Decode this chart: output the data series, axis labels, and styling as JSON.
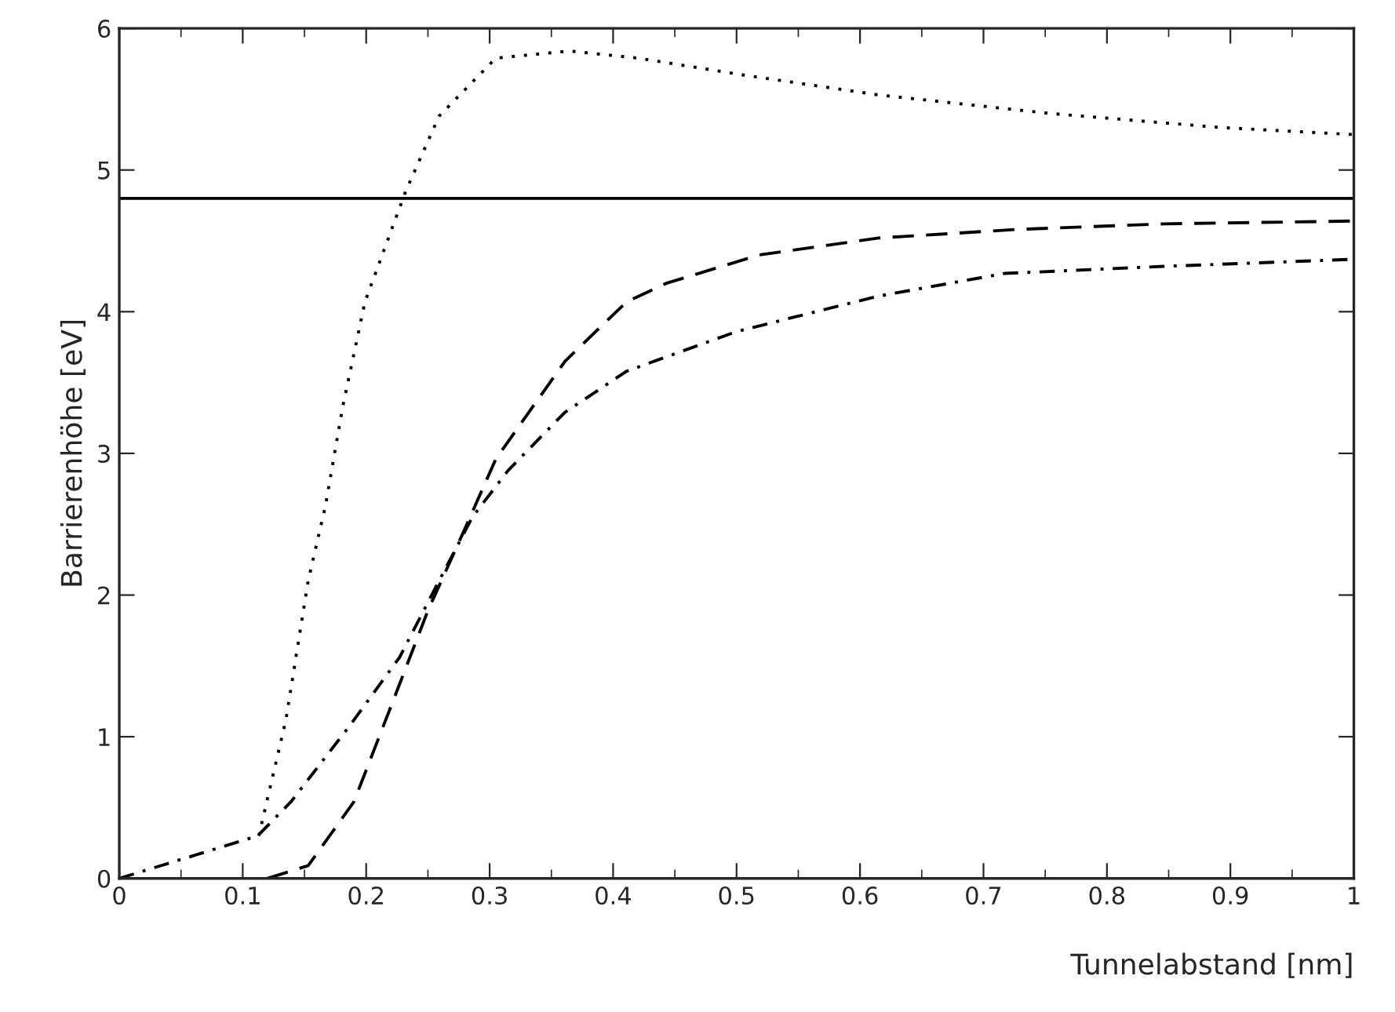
{
  "chart_data": {
    "type": "line",
    "xlabel": "Tunnelabstand [nm]",
    "ylabel": "Barrierenhöhe [eV]",
    "xlim": [
      0,
      1
    ],
    "ylim": [
      0,
      6
    ],
    "xticks": [
      0,
      0.1,
      0.2,
      0.3,
      0.4,
      0.5,
      0.6,
      0.7,
      0.8,
      0.9,
      1
    ],
    "yticks": [
      0,
      1,
      2,
      3,
      4,
      5,
      6
    ],
    "grid": false,
    "legend": false,
    "marker": "none",
    "ref_lines": [
      {
        "axis": "y",
        "value": 4.8,
        "color": "#000000",
        "line_style": "solid"
      }
    ],
    "series": [
      {
        "color": "#000000",
        "line_style": "dotted",
        "x": [
          0.113,
          0.135,
          0.153,
          0.167,
          0.181,
          0.199,
          0.232,
          0.259,
          0.305,
          0.365,
          0.42,
          0.506,
          0.615,
          0.753,
          0.892,
          1.0
        ],
        "values": [
          0.3,
          1.12,
          2.1,
          2.63,
          3.33,
          4.07,
          4.85,
          5.38,
          5.79,
          5.84,
          5.79,
          5.67,
          5.53,
          5.4,
          5.3,
          5.25
        ]
      },
      {
        "color": "#000000",
        "line_style": "dashed",
        "x": [
          0.12,
          0.153,
          0.19,
          0.223,
          0.25,
          0.278,
          0.305,
          0.361,
          0.411,
          0.443,
          0.518,
          0.615,
          0.726,
          0.846,
          1.0
        ],
        "values": [
          0,
          0.09,
          0.54,
          1.28,
          1.89,
          2.43,
          2.96,
          3.65,
          4.07,
          4.2,
          4.4,
          4.52,
          4.58,
          4.62,
          4.64
        ]
      },
      {
        "color": "#000000",
        "line_style": "dashdot",
        "x": [
          0,
          0.112,
          0.139,
          0.186,
          0.227,
          0.259,
          0.286,
          0.315,
          0.361,
          0.411,
          0.5,
          0.615,
          0.717,
          0.846,
          1.0
        ],
        "values": [
          0,
          0.3,
          0.54,
          1.07,
          1.56,
          2.1,
          2.55,
          2.88,
          3.29,
          3.58,
          3.86,
          4.11,
          4.27,
          4.32,
          4.37
        ]
      }
    ]
  }
}
